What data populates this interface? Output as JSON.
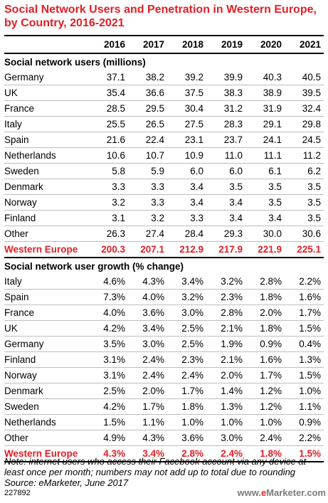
{
  "title": "Social Network Users and Penetration in Western Europe, by Country, 2016-2021",
  "chart_data": {
    "type": "table",
    "title": "Social Network Users and Penetration in Western Europe, by Country, 2016-2021",
    "columns": [
      "2016",
      "2017",
      "2018",
      "2019",
      "2020",
      "2021"
    ],
    "sections": [
      {
        "heading": "Social network users (millions)",
        "rows": [
          {
            "label": "Germany",
            "values": [
              "37.1",
              "38.2",
              "39.2",
              "39.9",
              "40.3",
              "40.5"
            ]
          },
          {
            "label": "UK",
            "values": [
              "35.4",
              "36.6",
              "37.5",
              "38.3",
              "38.9",
              "39.5"
            ]
          },
          {
            "label": "France",
            "values": [
              "28.5",
              "29.5",
              "30.4",
              "31.2",
              "31.9",
              "32.4"
            ]
          },
          {
            "label": "Italy",
            "values": [
              "25.5",
              "26.5",
              "27.5",
              "28.3",
              "29.1",
              "29.8"
            ]
          },
          {
            "label": "Spain",
            "values": [
              "21.6",
              "22.4",
              "23.1",
              "23.7",
              "24.1",
              "24.5"
            ]
          },
          {
            "label": "Netherlands",
            "values": [
              "10.6",
              "10.7",
              "10.9",
              "11.0",
              "11.1",
              "11.2"
            ]
          },
          {
            "label": "Sweden",
            "values": [
              "5.8",
              "5.9",
              "6.0",
              "6.0",
              "6.1",
              "6.2"
            ]
          },
          {
            "label": "Denmark",
            "values": [
              "3.3",
              "3.3",
              "3.4",
              "3.5",
              "3.5",
              "3.5"
            ]
          },
          {
            "label": "Norway",
            "values": [
              "3.2",
              "3.3",
              "3.4",
              "3.4",
              "3.5",
              "3.5"
            ]
          },
          {
            "label": "Finland",
            "values": [
              "3.1",
              "3.2",
              "3.3",
              "3.4",
              "3.4",
              "3.5"
            ]
          },
          {
            "label": "Other",
            "values": [
              "26.3",
              "27.4",
              "28.4",
              "29.3",
              "30.0",
              "30.6"
            ]
          }
        ],
        "total": {
          "label": "Western Europe",
          "values": [
            "200.3",
            "207.1",
            "212.9",
            "217.9",
            "221.9",
            "225.1"
          ]
        }
      },
      {
        "heading": "Social network user growth (% change)",
        "rows": [
          {
            "label": "Italy",
            "values": [
              "4.6%",
              "4.3%",
              "3.4%",
              "3.2%",
              "2.8%",
              "2.2%"
            ]
          },
          {
            "label": "Spain",
            "values": [
              "7.3%",
              "4.0%",
              "3.2%",
              "2.3%",
              "1.8%",
              "1.6%"
            ]
          },
          {
            "label": "France",
            "values": [
              "4.0%",
              "3.6%",
              "3.0%",
              "2.8%",
              "2.0%",
              "1.7%"
            ]
          },
          {
            "label": "UK",
            "values": [
              "4.2%",
              "3.4%",
              "2.5%",
              "2.1%",
              "1.8%",
              "1.5%"
            ]
          },
          {
            "label": "Germany",
            "values": [
              "3.5%",
              "3.0%",
              "2.5%",
              "1.9%",
              "0.9%",
              "0.4%"
            ]
          },
          {
            "label": "Finland",
            "values": [
              "3.1%",
              "2.4%",
              "2.3%",
              "2.1%",
              "1.6%",
              "1.3%"
            ]
          },
          {
            "label": "Norway",
            "values": [
              "3.1%",
              "2.4%",
              "2.4%",
              "2.0%",
              "1.7%",
              "1.5%"
            ]
          },
          {
            "label": "Denmark",
            "values": [
              "2.5%",
              "2.0%",
              "1.7%",
              "1.4%",
              "1.2%",
              "1.0%"
            ]
          },
          {
            "label": "Sweden",
            "values": [
              "4.2%",
              "1.7%",
              "1.8%",
              "1.3%",
              "1.2%",
              "1.1%"
            ]
          },
          {
            "label": "Netherlands",
            "values": [
              "1.5%",
              "1.1%",
              "1.0%",
              "1.0%",
              "1.0%",
              "0.9%"
            ]
          },
          {
            "label": "Other",
            "values": [
              "4.9%",
              "4.3%",
              "3.6%",
              "3.0%",
              "2.4%",
              "2.2%"
            ]
          }
        ],
        "total": {
          "label": "Western Europe",
          "values": [
            "4.3%",
            "3.4%",
            "2.8%",
            "2.4%",
            "1.8%",
            "1.5%"
          ]
        }
      }
    ]
  },
  "note": "Note: internet users who access their Facebook account via any device at least once per month; numbers may not add up to total due to rounding",
  "source": "Source: eMarketer, June 2017",
  "chart_id": "227892",
  "brand": {
    "prefix": "www.",
    "highlight": "e",
    "rest": "Marketer.com"
  },
  "colors": {
    "accent": "#e41e26",
    "rule": "#bdbdbd"
  }
}
